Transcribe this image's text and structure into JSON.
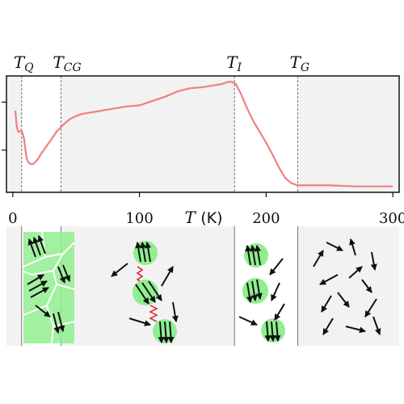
{
  "chart_data": {
    "type": "line",
    "title": "",
    "xlabel": {
      "symbol": "T",
      "unit": "(K)"
    },
    "ylabel": "",
    "xlim": [
      -5,
      305
    ],
    "ylim": [
      0,
      1
    ],
    "xticks": [
      0,
      100,
      200,
      300
    ],
    "y_ticks_unlabeled": 2,
    "grid": false,
    "series": [
      {
        "color": "#f08080",
        "x": [
          2,
          3,
          4,
          5,
          6,
          7,
          8,
          9,
          10,
          11,
          12,
          14,
          16,
          18,
          20,
          22,
          25,
          28,
          31,
          35,
          40,
          45,
          50,
          55,
          60,
          65,
          70,
          75,
          80,
          90,
          100,
          110,
          120,
          130,
          140,
          150,
          160,
          165,
          170,
          173,
          176,
          180,
          185,
          190,
          195,
          200,
          205,
          210,
          215,
          220,
          225,
          235,
          250,
          270,
          290,
          300
        ],
        "y": [
          0.72,
          0.58,
          0.53,
          0.52,
          0.53,
          0.53,
          0.5,
          0.45,
          0.35,
          0.27,
          0.24,
          0.22,
          0.22,
          0.24,
          0.27,
          0.31,
          0.36,
          0.41,
          0.46,
          0.53,
          0.59,
          0.64,
          0.67,
          0.69,
          0.7,
          0.71,
          0.72,
          0.73,
          0.74,
          0.76,
          0.77,
          0.81,
          0.85,
          0.9,
          0.93,
          0.94,
          0.96,
          0.97,
          0.99,
          0.99,
          0.97,
          0.88,
          0.74,
          0.62,
          0.52,
          0.42,
          0.31,
          0.19,
          0.09,
          0.04,
          0.02,
          0.02,
          0.02,
          0.01,
          0.01,
          0.01
        ]
      }
    ],
    "transitions": [
      {
        "symbol": "T",
        "subscript": "Q",
        "x": 7
      },
      {
        "symbol": "T",
        "subscript": "CG",
        "x": 38
      },
      {
        "symbol": "T",
        "subscript": "I",
        "x": 175
      },
      {
        "symbol": "T",
        "subscript": "G",
        "x": 225
      }
    ],
    "regions": [
      {
        "x0": 7,
        "x1": 38,
        "shaded": false
      },
      {
        "x0": 175,
        "x1": 225,
        "shaded": false
      }
    ],
    "colors": {
      "panel_bg": "#f2f2f2",
      "line": "#f08080",
      "cluster": "#90ee90"
    },
    "schematic": [
      "domains",
      "clusters-linked",
      "clusters",
      "free-spins"
    ]
  }
}
